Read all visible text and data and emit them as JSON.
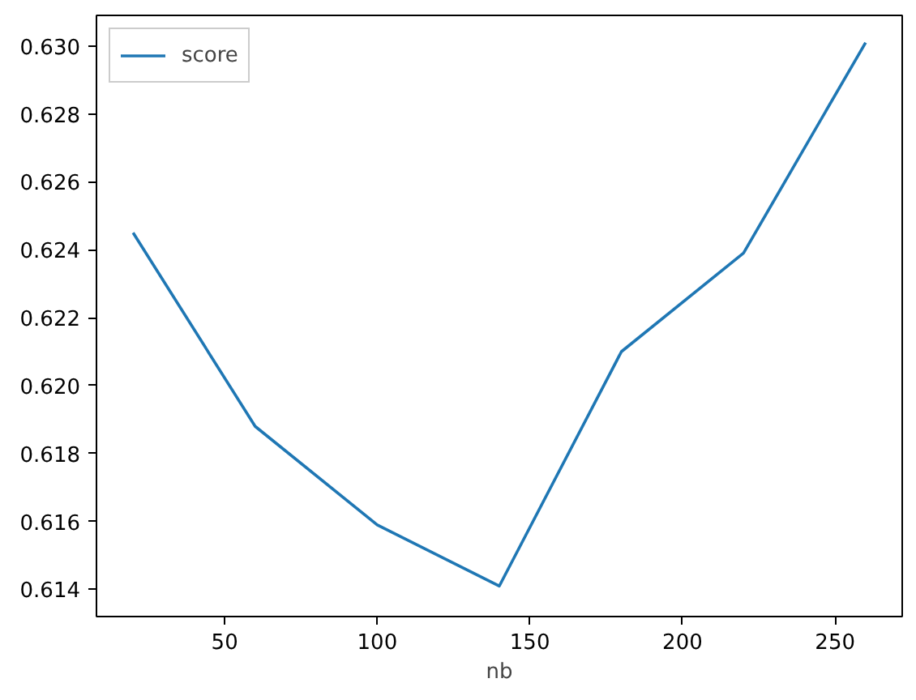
{
  "chart_data": {
    "type": "line",
    "xlabel": "nb",
    "x": [
      20,
      60,
      100,
      140,
      180,
      220,
      260
    ],
    "series": [
      {
        "name": "score",
        "color": "#1f77b4",
        "values": [
          0.6245,
          0.6188,
          0.6159,
          0.6141,
          0.621,
          0.6239,
          0.6301
        ]
      }
    ],
    "xlim": [
      8,
      272
    ],
    "ylim": [
      0.6132,
      0.6309
    ],
    "xticks": [
      50,
      100,
      150,
      200,
      250
    ],
    "yticks": [
      0.614,
      0.616,
      0.618,
      {
        "value": 0.62,
        "label": "0.620"
      },
      0.622,
      0.624,
      0.626,
      0.628,
      {
        "value": 0.63,
        "label": "0.630"
      }
    ],
    "grid": false,
    "legend": "top left",
    "line_style": "solid"
  }
}
